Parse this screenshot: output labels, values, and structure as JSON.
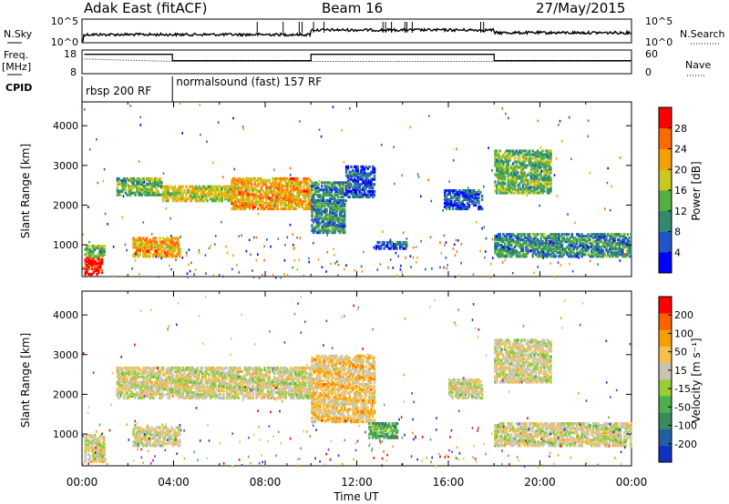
{
  "header": {
    "station": "Adak East (fitACF)",
    "beam": "Beam 16",
    "date": "27/May/2015"
  },
  "summary": {
    "nsky_label": "N.Sky",
    "nsky_ticks": [
      "10^5",
      "10^0"
    ],
    "nsearch_label": "N.Search",
    "nsearch_ticks": [
      "10^5",
      "10^0"
    ],
    "freq_label_1": "Freq.",
    "freq_label_2": "[MHz]",
    "freq_ticks": [
      "18",
      "8"
    ],
    "nave_label": "Nave",
    "nave_ticks": [
      "60",
      "0"
    ],
    "cpid_label": "CPID",
    "cpid_segments": [
      {
        "label": "rbsp 200 RF",
        "start": 0,
        "end": 3.95
      },
      {
        "label": "normalsound (fast) 157 RF",
        "start": 3.95,
        "end": 24
      }
    ],
    "freq_series_upper": [
      [
        0.1,
        16.2
      ],
      [
        3.95,
        16.2
      ],
      [
        3.95,
        13.5
      ],
      [
        10.0,
        13.5
      ],
      [
        10.0,
        16.2
      ],
      [
        18.0,
        16.2
      ],
      [
        18.0,
        13.5
      ],
      [
        24,
        13.5
      ]
    ],
    "freq_series_lower": [
      [
        0.1,
        14.2
      ],
      [
        3.95,
        13.2
      ],
      [
        10.0,
        13.2
      ],
      [
        18.0,
        13.2
      ],
      [
        24,
        13.2
      ]
    ]
  },
  "chart_data": [
    {
      "type": "heatmap",
      "name": "power",
      "ylabel": "Slant Range [km]",
      "yticks": [
        "1000",
        "2000",
        "3000",
        "4000"
      ],
      "ylim": [
        200,
        4600
      ],
      "xlim": [
        0,
        24
      ],
      "colorbar_label": "Power [dB]",
      "colorbar_ticks": [
        "4",
        "8",
        "12",
        "16",
        "20",
        "24",
        "28"
      ],
      "colors": [
        "#0000ff",
        "#1f55c8",
        "#2f8a6e",
        "#52b040",
        "#c8c820",
        "#f5a000",
        "#ff6a00",
        "#ff0000"
      ],
      "regions": [
        {
          "t0": 0.1,
          "t1": 0.9,
          "r0": 250,
          "r1": 700,
          "level": 7
        },
        {
          "t0": 0.1,
          "t1": 1.0,
          "r0": 700,
          "r1": 1000,
          "level": 3
        },
        {
          "t0": 2.2,
          "t1": 4.3,
          "r0": 700,
          "r1": 1200,
          "level": 5
        },
        {
          "t0": 1.5,
          "t1": 3.5,
          "r0": 2250,
          "r1": 2700,
          "level": 3
        },
        {
          "t0": 3.5,
          "t1": 6.5,
          "r0": 2100,
          "r1": 2500,
          "level": 4
        },
        {
          "t0": 6.5,
          "t1": 10.0,
          "r0": 1900,
          "r1": 2700,
          "level": 5
        },
        {
          "t0": 10.0,
          "t1": 11.5,
          "r0": 1300,
          "r1": 2600,
          "level": 2
        },
        {
          "t0": 11.5,
          "t1": 12.8,
          "r0": 2200,
          "r1": 3000,
          "level": 1
        },
        {
          "t0": 15.8,
          "t1": 17.5,
          "r0": 1900,
          "r1": 2400,
          "level": 1
        },
        {
          "t0": 18.0,
          "t1": 20.5,
          "r0": 2300,
          "r1": 3400,
          "level": 3
        },
        {
          "t0": 18.0,
          "t1": 24.0,
          "r0": 700,
          "r1": 1300,
          "level": 2
        },
        {
          "t0": 12.8,
          "t1": 14.2,
          "r0": 900,
          "r1": 1100,
          "level": 1
        }
      ]
    },
    {
      "type": "heatmap",
      "name": "velocity",
      "ylabel": "Slant Range [km]",
      "yticks": [
        "1000",
        "2000",
        "3000",
        "4000"
      ],
      "ylim": [
        200,
        4600
      ],
      "xlim": [
        0,
        24
      ],
      "xlabel": "Time UT",
      "xticks": [
        "00:00",
        "04:00",
        "08:00",
        "12:00",
        "16:00",
        "20:00",
        "00:00"
      ],
      "colorbar_label": "Velocity [m s⁻¹]",
      "colorbar_ticks": [
        "200",
        "100",
        "50",
        "15",
        "-15",
        "-50",
        "-100",
        "-200"
      ],
      "colors": [
        "#1030c0",
        "#2060a0",
        "#3a8a5a",
        "#4caf50",
        "#9acd32",
        "#c8c4b8",
        "#f5c050",
        "#f5a000",
        "#ff6000",
        "#ff0000"
      ],
      "regions": [
        {
          "t0": 0.1,
          "t1": 1.0,
          "r0": 300,
          "r1": 1000,
          "level": 5
        },
        {
          "t0": 2.2,
          "t1": 4.3,
          "r0": 700,
          "r1": 1200,
          "level": 5
        },
        {
          "t0": 1.5,
          "t1": 10.0,
          "r0": 1900,
          "r1": 2700,
          "level": 5
        },
        {
          "t0": 10.0,
          "t1": 12.8,
          "r0": 1300,
          "r1": 3000,
          "level": 6
        },
        {
          "t0": 12.5,
          "t1": 13.8,
          "r0": 900,
          "r1": 1300,
          "level": 3
        },
        {
          "t0": 16.0,
          "t1": 17.5,
          "r0": 1900,
          "r1": 2400,
          "level": 5
        },
        {
          "t0": 18.0,
          "t1": 20.5,
          "r0": 2300,
          "r1": 3400,
          "level": 5
        },
        {
          "t0": 18.0,
          "t1": 24.0,
          "r0": 700,
          "r1": 1300,
          "level": 5
        }
      ]
    }
  ]
}
